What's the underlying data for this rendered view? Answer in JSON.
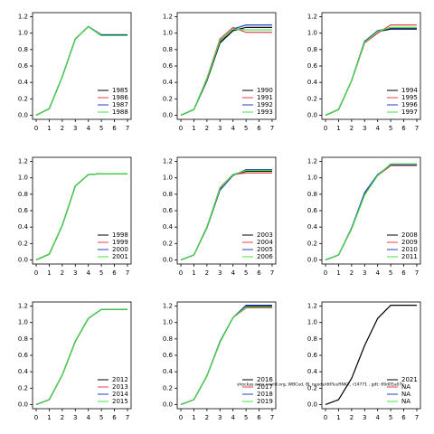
{
  "chart_data": [
    {
      "type": "line",
      "x": [
        0,
        1,
        2,
        3,
        4,
        5,
        6,
        7
      ],
      "xlim": [
        -0.28,
        7.28
      ],
      "ylim": [
        -0.05,
        1.25
      ],
      "xticks": [
        0,
        1,
        2,
        3,
        4,
        5,
        6,
        7
      ],
      "yticks": [
        {
          "value": 0,
          "label": "0.0"
        },
        {
          "value": 0.2,
          "label": "0.2"
        },
        {
          "value": 0.4,
          "label": "0.4"
        },
        {
          "value": 0.6,
          "label": "0.6"
        },
        {
          "value": 0.8,
          "label": "0.8"
        },
        {
          "value": 1,
          "label": "1.0"
        },
        {
          "value": 1.2,
          "label": "1.2"
        }
      ],
      "legend": "lower right",
      "series": [
        {
          "name": "1985",
          "color": "#000000",
          "values": [
            0,
            0.08,
            0.47,
            0.93,
            1.08,
            0.97,
            0.97,
            0.97
          ]
        },
        {
          "name": "1986",
          "color": "#e8404f",
          "values": [
            0,
            0.08,
            0.47,
            0.93,
            1.08,
            0.98,
            0.98,
            0.98
          ]
        },
        {
          "name": "1987",
          "color": "#1f3fbf",
          "values": [
            0,
            0.08,
            0.47,
            0.93,
            1.08,
            0.98,
            0.98,
            0.98
          ]
        },
        {
          "name": "1988",
          "color": "#3fe03f",
          "values": [
            0,
            0.08,
            0.47,
            0.93,
            1.08,
            0.97,
            0.97,
            0.97
          ]
        }
      ]
    },
    {
      "type": "line",
      "x": [
        0,
        1,
        2,
        3,
        4,
        5,
        6,
        7
      ],
      "xlim": [
        -0.28,
        7.28
      ],
      "ylim": [
        -0.05,
        1.25
      ],
      "xticks": [
        0,
        1,
        2,
        3,
        4,
        5,
        6,
        7
      ],
      "yticks": [
        {
          "value": 0,
          "label": "0.0"
        },
        {
          "value": 0.2,
          "label": "0.2"
        },
        {
          "value": 0.4,
          "label": "0.4"
        },
        {
          "value": 0.6,
          "label": "0.6"
        },
        {
          "value": 0.8,
          "label": "0.8"
        },
        {
          "value": 1,
          "label": "1.0"
        },
        {
          "value": 1.2,
          "label": "1.2"
        }
      ],
      "legend": "lower right",
      "series": [
        {
          "name": "1990",
          "color": "#000000",
          "values": [
            0,
            0.07,
            0.42,
            0.88,
            1.03,
            1.07,
            1.07,
            1.07
          ]
        },
        {
          "name": "1991",
          "color": "#e8404f",
          "values": [
            0,
            0.07,
            0.45,
            0.93,
            1.07,
            1.01,
            1.01,
            1.01
          ]
        },
        {
          "name": "1992",
          "color": "#1f3fbf",
          "values": [
            0,
            0.07,
            0.43,
            0.9,
            1.05,
            1.1,
            1.1,
            1.1
          ]
        },
        {
          "name": "1993",
          "color": "#3fe03f",
          "values": [
            0,
            0.07,
            0.44,
            0.91,
            1.05,
            1.04,
            1.04,
            1.04
          ]
        }
      ]
    },
    {
      "type": "line",
      "x": [
        0,
        1,
        2,
        3,
        4,
        5,
        6,
        7
      ],
      "xlim": [
        -0.28,
        7.28
      ],
      "ylim": [
        -0.05,
        1.25
      ],
      "xticks": [
        0,
        1,
        2,
        3,
        4,
        5,
        6,
        7
      ],
      "yticks": [
        {
          "value": 0,
          "label": "0.0"
        },
        {
          "value": 0.2,
          "label": "0.2"
        },
        {
          "value": 0.4,
          "label": "0.4"
        },
        {
          "value": 0.6,
          "label": "0.6"
        },
        {
          "value": 0.8,
          "label": "0.8"
        },
        {
          "value": 1,
          "label": "1.0"
        },
        {
          "value": 1.2,
          "label": "1.2"
        }
      ],
      "legend": "lower right",
      "series": [
        {
          "name": "1994",
          "color": "#000000",
          "values": [
            0,
            0.07,
            0.42,
            0.9,
            1.02,
            1.05,
            1.05,
            1.05
          ]
        },
        {
          "name": "1995",
          "color": "#e8404f",
          "values": [
            0,
            0.07,
            0.42,
            0.88,
            1.0,
            1.1,
            1.1,
            1.1
          ]
        },
        {
          "name": "1996",
          "color": "#1f3fbf",
          "values": [
            0,
            0.07,
            0.42,
            0.9,
            1.03,
            1.06,
            1.06,
            1.06
          ]
        },
        {
          "name": "1997",
          "color": "#3fe03f",
          "values": [
            0,
            0.07,
            0.42,
            0.89,
            1.02,
            1.07,
            1.07,
            1.07
          ]
        }
      ]
    },
    {
      "type": "line",
      "x": [
        0,
        1,
        2,
        3,
        4,
        5,
        6,
        7
      ],
      "xlim": [
        -0.28,
        7.28
      ],
      "ylim": [
        -0.05,
        1.25
      ],
      "xticks": [
        0,
        1,
        2,
        3,
        4,
        5,
        6,
        7
      ],
      "yticks": [
        {
          "value": 0,
          "label": "0.0"
        },
        {
          "value": 0.2,
          "label": "0.2"
        },
        {
          "value": 0.4,
          "label": "0.4"
        },
        {
          "value": 0.6,
          "label": "0.6"
        },
        {
          "value": 0.8,
          "label": "0.8"
        },
        {
          "value": 1,
          "label": "1.0"
        },
        {
          "value": 1.2,
          "label": "1.2"
        }
      ],
      "legend": "lower right",
      "series": [
        {
          "name": "1998",
          "color": "#000000",
          "values": [
            0,
            0.07,
            0.42,
            0.9,
            1.04,
            1.05,
            1.05,
            1.05
          ]
        },
        {
          "name": "1999",
          "color": "#e8404f",
          "values": [
            0,
            0.07,
            0.42,
            0.9,
            1.04,
            1.05,
            1.05,
            1.05
          ]
        },
        {
          "name": "2000",
          "color": "#1f3fbf",
          "values": [
            0,
            0.07,
            0.42,
            0.9,
            1.04,
            1.05,
            1.05,
            1.05
          ]
        },
        {
          "name": "2001",
          "color": "#3fe03f",
          "values": [
            0,
            0.07,
            0.42,
            0.9,
            1.04,
            1.05,
            1.05,
            1.05
          ]
        }
      ]
    },
    {
      "type": "line",
      "x": [
        0,
        1,
        2,
        3,
        4,
        5,
        6,
        7
      ],
      "xlim": [
        -0.28,
        7.28
      ],
      "ylim": [
        -0.05,
        1.25
      ],
      "xticks": [
        0,
        1,
        2,
        3,
        4,
        5,
        6,
        7
      ],
      "yticks": [
        {
          "value": 0,
          "label": "0.0"
        },
        {
          "value": 0.2,
          "label": "0.2"
        },
        {
          "value": 0.4,
          "label": "0.4"
        },
        {
          "value": 0.6,
          "label": "0.6"
        },
        {
          "value": 0.8,
          "label": "0.8"
        },
        {
          "value": 1,
          "label": "1.0"
        },
        {
          "value": 1.2,
          "label": "1.2"
        }
      ],
      "legend": "lower right",
      "series": [
        {
          "name": "2003",
          "color": "#000000",
          "values": [
            0,
            0.06,
            0.4,
            0.86,
            1.04,
            1.08,
            1.08,
            1.08
          ]
        },
        {
          "name": "2004",
          "color": "#e8404f",
          "values": [
            0,
            0.06,
            0.4,
            0.88,
            1.04,
            1.06,
            1.06,
            1.06
          ]
        },
        {
          "name": "2005",
          "color": "#1f3fbf",
          "values": [
            0,
            0.06,
            0.39,
            0.85,
            1.03,
            1.1,
            1.1,
            1.1
          ]
        },
        {
          "name": "2006",
          "color": "#3fe03f",
          "values": [
            0,
            0.06,
            0.4,
            0.87,
            1.04,
            1.09,
            1.09,
            1.09
          ]
        }
      ]
    },
    {
      "type": "line",
      "x": [
        0,
        1,
        2,
        3,
        4,
        5,
        6,
        7
      ],
      "xlim": [
        -0.28,
        7.28
      ],
      "ylim": [
        -0.05,
        1.25
      ],
      "xticks": [
        0,
        1,
        2,
        3,
        4,
        5,
        6,
        7
      ],
      "yticks": [
        {
          "value": 0,
          "label": "0.0"
        },
        {
          "value": 0.2,
          "label": "0.2"
        },
        {
          "value": 0.4,
          "label": "0.4"
        },
        {
          "value": 0.6,
          "label": "0.6"
        },
        {
          "value": 0.8,
          "label": "0.8"
        },
        {
          "value": 1,
          "label": "1.0"
        },
        {
          "value": 1.2,
          "label": "1.2"
        }
      ],
      "legend": "lower right",
      "series": [
        {
          "name": "2008",
          "color": "#000000",
          "values": [
            0,
            0.06,
            0.38,
            0.8,
            1.03,
            1.15,
            1.15,
            1.15
          ]
        },
        {
          "name": "2009",
          "color": "#e8404f",
          "values": [
            0,
            0.06,
            0.38,
            0.8,
            1.03,
            1.15,
            1.15,
            1.15
          ]
        },
        {
          "name": "2010",
          "color": "#1f3fbf",
          "values": [
            0,
            0.06,
            0.39,
            0.82,
            1.04,
            1.16,
            1.16,
            1.16
          ]
        },
        {
          "name": "2011",
          "color": "#3fe03f",
          "values": [
            0,
            0.06,
            0.38,
            0.79,
            1.03,
            1.17,
            1.17,
            1.17
          ]
        }
      ]
    },
    {
      "type": "line",
      "x": [
        0,
        1,
        2,
        3,
        4,
        5,
        6,
        7
      ],
      "xlim": [
        -0.28,
        7.28
      ],
      "ylim": [
        -0.05,
        1.25
      ],
      "xticks": [
        0,
        1,
        2,
        3,
        4,
        5,
        6,
        7
      ],
      "yticks": [
        {
          "value": 0,
          "label": "0.0"
        },
        {
          "value": 0.2,
          "label": "0.2"
        },
        {
          "value": 0.4,
          "label": "0.4"
        },
        {
          "value": 0.6,
          "label": "0.6"
        },
        {
          "value": 0.8,
          "label": "0.8"
        },
        {
          "value": 1,
          "label": "1.0"
        },
        {
          "value": 1.2,
          "label": "1.2"
        }
      ],
      "legend": "lower right",
      "series": [
        {
          "name": "2012",
          "color": "#000000",
          "values": [
            0,
            0.06,
            0.36,
            0.77,
            1.05,
            1.16,
            1.16,
            1.16
          ]
        },
        {
          "name": "2013",
          "color": "#e8404f",
          "values": [
            0,
            0.06,
            0.36,
            0.77,
            1.05,
            1.16,
            1.16,
            1.16
          ]
        },
        {
          "name": "2014",
          "color": "#1f3fbf",
          "values": [
            0,
            0.06,
            0.36,
            0.77,
            1.05,
            1.16,
            1.16,
            1.16
          ]
        },
        {
          "name": "2015",
          "color": "#3fe03f",
          "values": [
            0,
            0.06,
            0.36,
            0.77,
            1.05,
            1.16,
            1.16,
            1.16
          ]
        }
      ]
    },
    {
      "type": "line",
      "x": [
        0,
        1,
        2,
        3,
        4,
        5,
        6,
        7
      ],
      "xlim": [
        -0.28,
        7.28
      ],
      "ylim": [
        -0.05,
        1.25
      ],
      "xticks": [
        0,
        1,
        2,
        3,
        4,
        5,
        6,
        7
      ],
      "yticks": [
        {
          "value": 0,
          "label": "0.0"
        },
        {
          "value": 0.2,
          "label": "0.2"
        },
        {
          "value": 0.4,
          "label": "0.4"
        },
        {
          "value": 0.6,
          "label": "0.6"
        },
        {
          "value": 0.8,
          "label": "0.8"
        },
        {
          "value": 1,
          "label": "1.0"
        },
        {
          "value": 1.2,
          "label": "1.2"
        }
      ],
      "legend": "lower right",
      "series": [
        {
          "name": "2016",
          "color": "#000000",
          "values": [
            0,
            0.06,
            0.35,
            0.76,
            1.06,
            1.2,
            1.2,
            1.2
          ]
        },
        {
          "name": "2017",
          "color": "#e8404f",
          "values": [
            0,
            0.06,
            0.35,
            0.76,
            1.06,
            1.18,
            1.18,
            1.18
          ]
        },
        {
          "name": "2018",
          "color": "#1f3fbf",
          "values": [
            0,
            0.06,
            0.35,
            0.77,
            1.06,
            1.21,
            1.21,
            1.21
          ]
        },
        {
          "name": "2019",
          "color": "#3fe03f",
          "values": [
            0,
            0.06,
            0.35,
            0.76,
            1.06,
            1.19,
            1.19,
            1.19
          ]
        }
      ]
    },
    {
      "type": "line",
      "x": [
        0,
        1,
        2,
        3,
        4,
        5,
        6,
        7
      ],
      "xlim": [
        -0.28,
        7.28
      ],
      "ylim": [
        -0.05,
        1.25
      ],
      "xticks": [
        0,
        1,
        2,
        3,
        4,
        5,
        6,
        7
      ],
      "yticks": [
        {
          "value": 0,
          "label": "0.0"
        },
        {
          "value": 0.2,
          "label": "0.2"
        },
        {
          "value": 0.4,
          "label": "0.4"
        },
        {
          "value": 0.6,
          "label": "0.6"
        },
        {
          "value": 0.8,
          "label": "0.8"
        },
        {
          "value": 1,
          "label": "1.0"
        },
        {
          "value": 1.2,
          "label": "1.2"
        }
      ],
      "legend": "lower right",
      "series": [
        {
          "name": "2021",
          "color": "#000000",
          "values": [
            0,
            0.06,
            0.32,
            0.72,
            1.05,
            1.21,
            1.21,
            1.21
          ]
        },
        {
          "name": "NA",
          "color": "#e8404f",
          "values": [
            null,
            null,
            null,
            null,
            null,
            null,
            null,
            null
          ]
        },
        {
          "name": "NA",
          "color": "#1f3fbf",
          "values": [
            null,
            null,
            null,
            null,
            null,
            null,
            null,
            null
          ]
        },
        {
          "name": "NA",
          "color": "#3fe03f",
          "values": [
            null,
            null,
            null,
            null,
            null,
            null,
            null,
            null
          ]
        }
      ]
    }
  ],
  "annotation": "shockas.wms.world.org, WBCed, Bl_needs/dtPlusRNK7, r14771 , gdt: 69d05a07c"
}
